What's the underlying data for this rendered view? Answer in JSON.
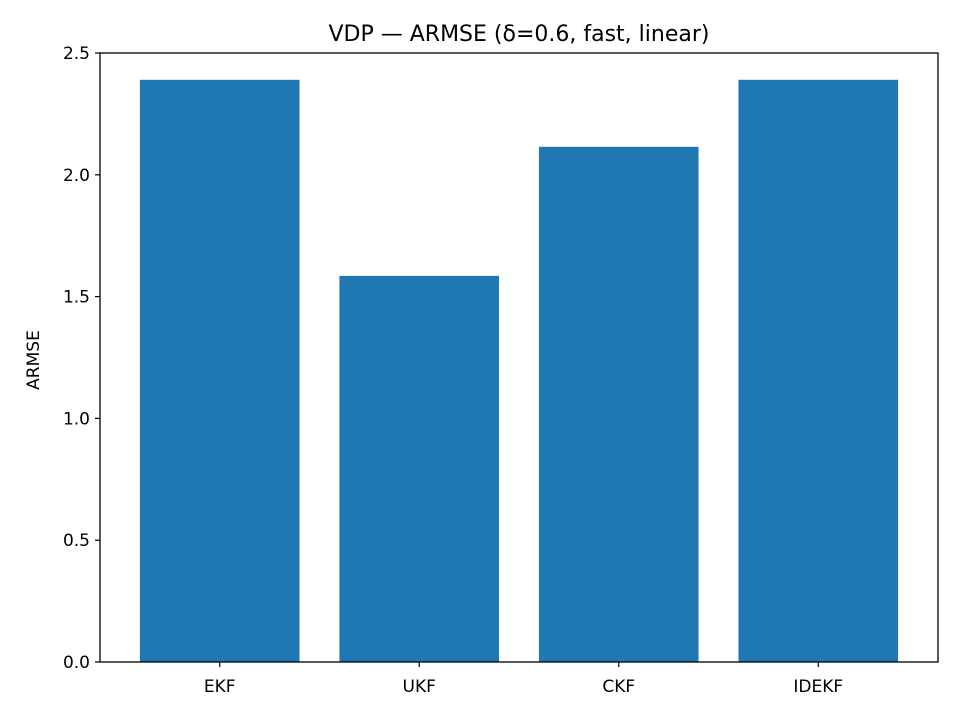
{
  "chart_data": {
    "type": "bar",
    "title": "VDP — ARMSE (δ=0.6, fast, linear)",
    "xlabel": "",
    "ylabel": "ARMSE",
    "categories": [
      "EKF",
      "UKF",
      "CKF",
      "IDEKF"
    ],
    "values": [
      2.39,
      1.585,
      2.115,
      2.39
    ],
    "ylim": [
      0,
      2.5
    ],
    "yticks": [
      "0.0",
      "0.5",
      "1.0",
      "1.5",
      "2.0",
      "2.5"
    ],
    "bar_color": "#1f77b4",
    "grid": false,
    "legend": "none"
  }
}
